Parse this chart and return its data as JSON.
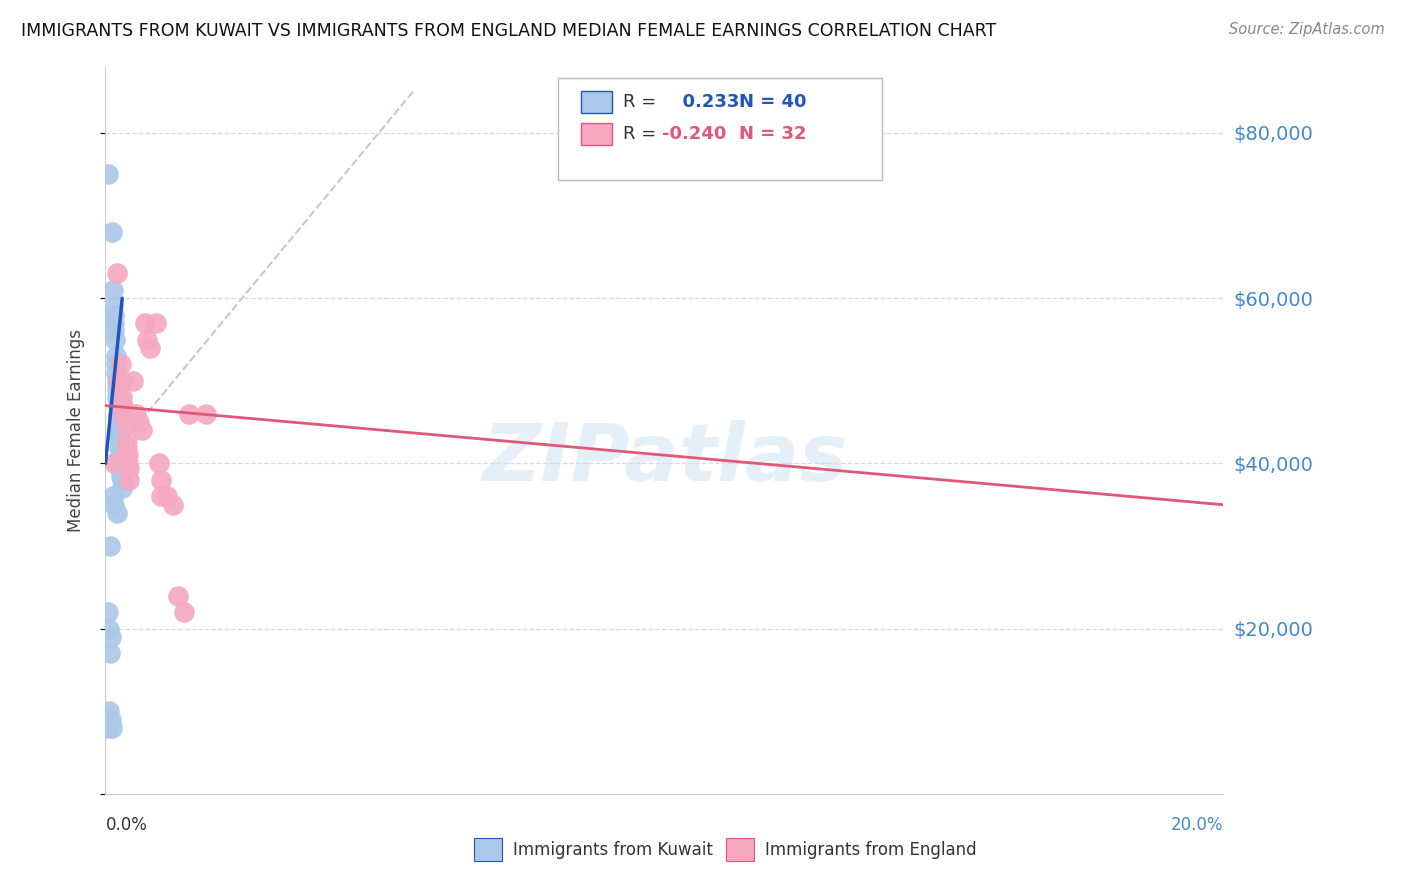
{
  "title": "IMMIGRANTS FROM KUWAIT VS IMMIGRANTS FROM ENGLAND MEDIAN FEMALE EARNINGS CORRELATION CHART",
  "source": "Source: ZipAtlas.com",
  "ylabel": "Median Female Earnings",
  "r_kuwait": 0.233,
  "n_kuwait": 40,
  "r_england": -0.24,
  "n_england": 32,
  "yticks": [
    0,
    20000,
    40000,
    60000,
    80000
  ],
  "ytick_labels": [
    "",
    "$20,000",
    "$40,000",
    "$60,000",
    "$80,000"
  ],
  "xlim": [
    0.0,
    0.2
  ],
  "ylim": [
    0,
    88000
  ],
  "watermark": "ZIPatlas",
  "color_kuwait": "#aac8e8",
  "color_england": "#f5a8bf",
  "line_color_kuwait": "#2255bb",
  "line_color_england": "#e05878",
  "label_color": "#4488cc",
  "grid_color": "#d8d8e8",
  "kuwait_points": [
    [
      0.0005,
      75000
    ],
    [
      0.0012,
      68000
    ],
    [
      0.0013,
      61000
    ],
    [
      0.0014,
      59000
    ],
    [
      0.0015,
      58000
    ],
    [
      0.0015,
      57000
    ],
    [
      0.0016,
      56000
    ],
    [
      0.0017,
      55000
    ],
    [
      0.0018,
      53000
    ],
    [
      0.0018,
      52000
    ],
    [
      0.0019,
      51000
    ],
    [
      0.002,
      50000
    ],
    [
      0.002,
      49000
    ],
    [
      0.0021,
      48000
    ],
    [
      0.0022,
      47000
    ],
    [
      0.0022,
      46000
    ],
    [
      0.0023,
      45000
    ],
    [
      0.0023,
      44000
    ],
    [
      0.0024,
      43500
    ],
    [
      0.0024,
      43000
    ],
    [
      0.0025,
      42000
    ],
    [
      0.0026,
      41000
    ],
    [
      0.0026,
      40000
    ],
    [
      0.0027,
      39500
    ],
    [
      0.0028,
      39000
    ],
    [
      0.0028,
      38500
    ],
    [
      0.0029,
      38000
    ],
    [
      0.003,
      37000
    ],
    [
      0.0005,
      22000
    ],
    [
      0.001,
      19000
    ],
    [
      0.0013,
      36000
    ],
    [
      0.0015,
      35000
    ],
    [
      0.002,
      34000
    ],
    [
      0.0008,
      30000
    ],
    [
      0.001,
      9000
    ],
    [
      0.0012,
      8000
    ],
    [
      0.0006,
      20000
    ],
    [
      0.0009,
      17000
    ],
    [
      0.0007,
      10000
    ],
    [
      0.0005,
      8000
    ]
  ],
  "england_points": [
    [
      0.0015,
      40000
    ],
    [
      0.002,
      63000
    ],
    [
      0.0025,
      50000
    ],
    [
      0.0028,
      52000
    ],
    [
      0.003,
      50000
    ],
    [
      0.003,
      48000
    ],
    [
      0.0032,
      47000
    ],
    [
      0.0032,
      46000
    ],
    [
      0.0035,
      45000
    ],
    [
      0.0038,
      43000
    ],
    [
      0.0038,
      42000
    ],
    [
      0.004,
      41000
    ],
    [
      0.004,
      40000
    ],
    [
      0.0042,
      39500
    ],
    [
      0.0042,
      38000
    ],
    [
      0.005,
      50000
    ],
    [
      0.0055,
      46000
    ],
    [
      0.006,
      45000
    ],
    [
      0.0065,
      44000
    ],
    [
      0.007,
      57000
    ],
    [
      0.0075,
      55000
    ],
    [
      0.008,
      54000
    ],
    [
      0.009,
      57000
    ],
    [
      0.0095,
      40000
    ],
    [
      0.01,
      38000
    ],
    [
      0.01,
      36000
    ],
    [
      0.011,
      36000
    ],
    [
      0.012,
      35000
    ],
    [
      0.013,
      24000
    ],
    [
      0.014,
      22000
    ],
    [
      0.015,
      46000
    ],
    [
      0.018,
      46000
    ]
  ],
  "kuwait_line": [
    0.0,
    0.003
  ],
  "kuwait_line_y": [
    40000,
    60000
  ],
  "england_line": [
    0.0,
    0.2
  ],
  "england_line_y": [
    47000,
    35000
  ],
  "diag_line": [
    0.0,
    0.055
  ],
  "diag_line_y": [
    40000,
    85000
  ]
}
